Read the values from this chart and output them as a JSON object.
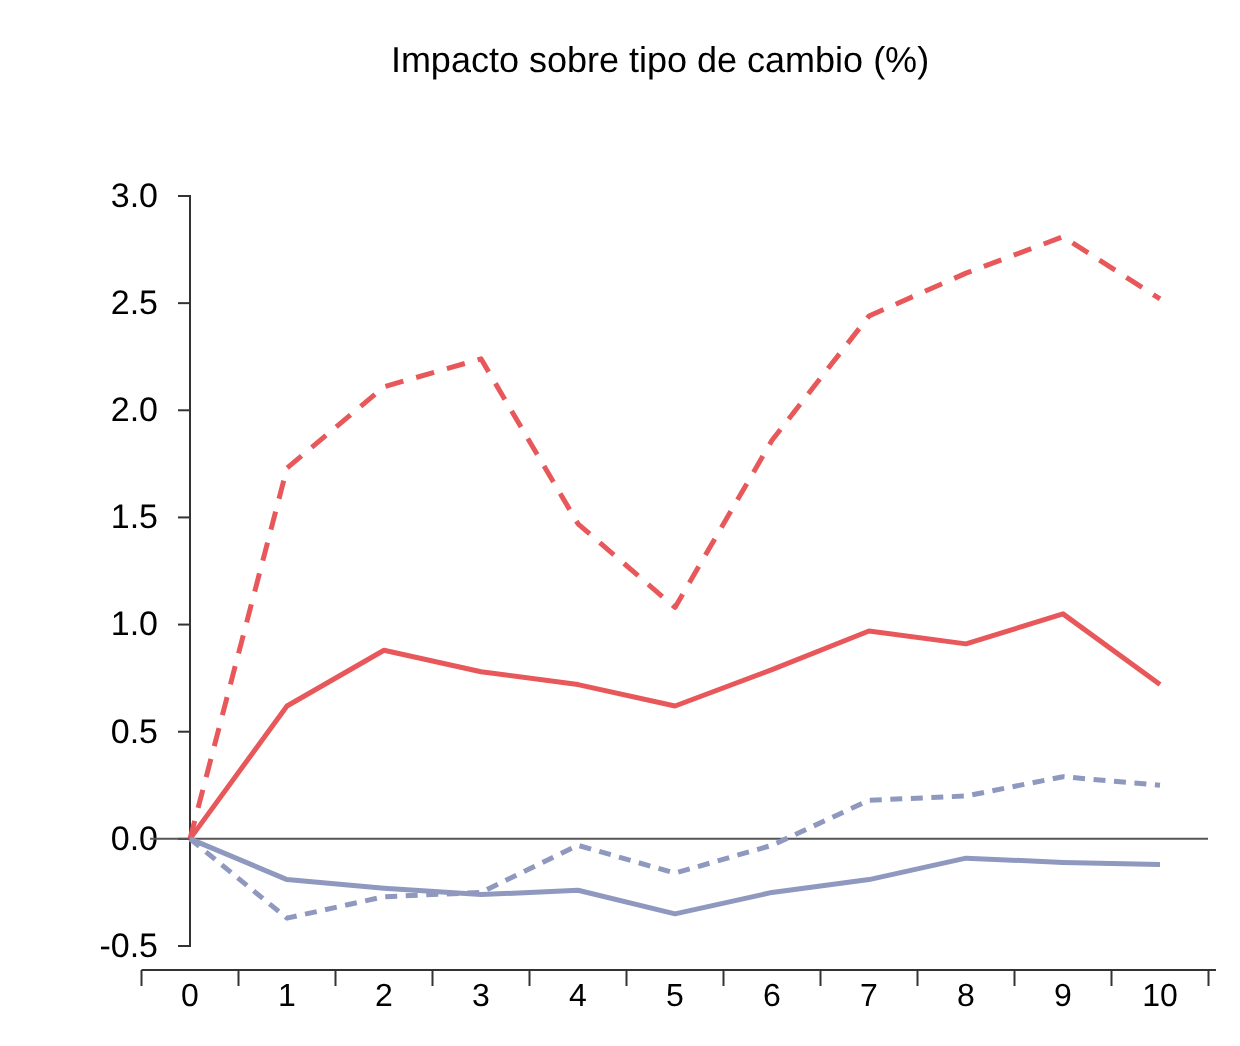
{
  "chart_data": {
    "type": "line",
    "title": "Impacto sobre tipo de cambio (%)",
    "categories": [
      "0",
      "1",
      "2",
      "3",
      "4",
      "5",
      "6",
      "7",
      "8",
      "9",
      "10"
    ],
    "series": [
      {
        "color": "#e8585a",
        "line_style": "dashed",
        "values": [
          0,
          1.73,
          2.11,
          2.24,
          1.47,
          1.08,
          1.86,
          2.44,
          2.64,
          2.81,
          2.52
        ]
      },
      {
        "color": "#e8585a",
        "line_style": "solid",
        "values": [
          0,
          0.62,
          0.88,
          0.78,
          0.72,
          0.62,
          0.79,
          0.97,
          0.91,
          1.05,
          0.72
        ]
      },
      {
        "color": "#8f98be",
        "line_style": "dashed",
        "values": [
          0,
          -0.37,
          -0.27,
          -0.25,
          -0.03,
          -0.16,
          -0.03,
          0.18,
          0.2,
          0.29,
          0.25
        ]
      },
      {
        "color": "#8f98be",
        "line_style": "solid",
        "values": [
          0,
          -0.19,
          -0.23,
          -0.26,
          -0.24,
          -0.35,
          -0.25,
          -0.19,
          -0.09,
          -0.11,
          -0.12
        ]
      }
    ],
    "ylim": [
      -0.5,
      3.0
    ],
    "yticks": [
      {
        "value": 3,
        "label": "3.0"
      },
      2.5,
      {
        "value": 2,
        "label": "2.0"
      },
      1.5,
      {
        "value": 1,
        "label": "1.0"
      },
      0.5,
      {
        "value": 0,
        "label": "0.0"
      },
      -0.5
    ],
    "ref_lines": [
      {
        "axis": "y",
        "value": 0,
        "color": "#555555"
      }
    ],
    "grid": false
  }
}
